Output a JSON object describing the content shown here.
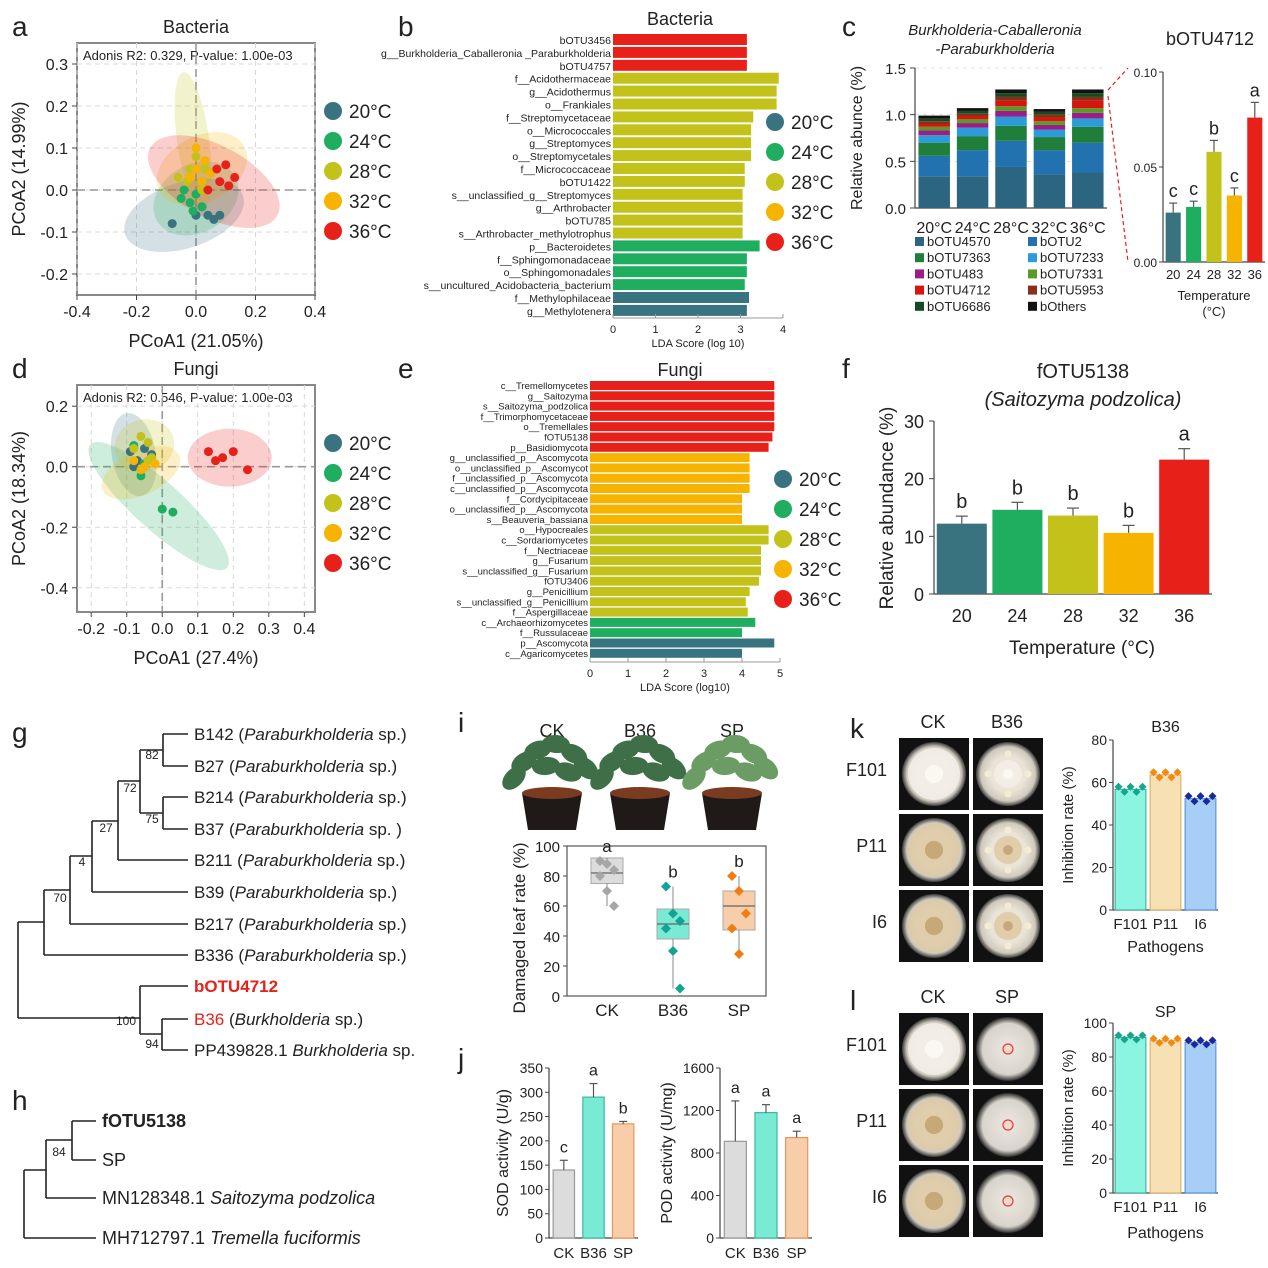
{
  "colors": {
    "t20": "#3a7380",
    "t24": "#1fae60",
    "t28": "#c3c21b",
    "t32": "#f6b400",
    "t36": "#e8201a",
    "stack": [
      "#2c6580",
      "#2272b0",
      "#1e7e3a",
      "#2d9bd8",
      "#9a1e88",
      "#5a9a28",
      "#d8140c",
      "#8a2e18",
      "#164a24",
      "#111111"
    ],
    "ck": "#dcdcdc",
    "b36": "#79ead4",
    "sp": "#f8ceaa"
  },
  "panels": {
    "a": "a",
    "b": "b",
    "c": "c",
    "d": "d",
    "e": "e",
    "f": "f",
    "g": "g",
    "h": "h",
    "i": "i",
    "j": "j",
    "k": "k",
    "l": "l"
  },
  "legend_temps": [
    "20°C",
    "24°C",
    "28°C",
    "32°C",
    "36°C"
  ],
  "chart_data": [
    {
      "id": "a",
      "type": "scatter",
      "title": "Bacteria",
      "annotation": "Adonis R2: 0.329, P-value: 1.00e-03",
      "xlabel": "PCoA1 (21.05%)",
      "ylabel": "PCoA2 (14.99%)",
      "xlim": [
        -0.4,
        0.4
      ],
      "ylim": [
        -0.25,
        0.35
      ],
      "xticks": [
        "-0.4",
        "-0.2",
        "0.0",
        "0.2",
        "0.4"
      ],
      "yticks": [
        "0.3",
        "0.2",
        "0.1",
        "0.0",
        "-0.1",
        "-0.2"
      ],
      "series": [
        {
          "name": "20°C",
          "points": [
            [
              -0.08,
              -0.08
            ],
            [
              0.0,
              -0.06
            ],
            [
              0.04,
              -0.06
            ],
            [
              0.08,
              -0.06
            ],
            [
              0.02,
              -0.04
            ],
            [
              0.06,
              -0.07
            ]
          ]
        },
        {
          "name": "24°C",
          "points": [
            [
              -0.05,
              -0.02
            ],
            [
              -0.02,
              -0.03
            ],
            [
              0.0,
              -0.01
            ],
            [
              -0.04,
              0.0
            ],
            [
              0.02,
              -0.04
            ],
            [
              -0.01,
              -0.05
            ]
          ]
        },
        {
          "name": "28°C",
          "points": [
            [
              -0.02,
              0.05
            ],
            [
              -0.06,
              0.03
            ],
            [
              0.0,
              0.08
            ],
            [
              0.03,
              0.05
            ],
            [
              -0.03,
              0.02
            ],
            [
              0.02,
              0.0
            ]
          ]
        },
        {
          "name": "32°C",
          "points": [
            [
              0.0,
              0.1
            ],
            [
              0.03,
              0.07
            ],
            [
              -0.02,
              0.03
            ],
            [
              0.0,
              0.05
            ],
            [
              0.05,
              0.04
            ],
            [
              0.02,
              0.02
            ]
          ]
        },
        {
          "name": "36°C",
          "points": [
            [
              0.1,
              0.06
            ],
            [
              0.08,
              0.02
            ],
            [
              0.13,
              0.03
            ],
            [
              0.04,
              0.0
            ],
            [
              0.07,
              0.05
            ],
            [
              0.11,
              0.01
            ]
          ]
        }
      ]
    },
    {
      "id": "b",
      "type": "bar",
      "orientation": "horizontal",
      "title": "Bacteria",
      "xlabel": "LDA Score (log 10)",
      "xlim": [
        0,
        4
      ],
      "xticks": [
        "0",
        "1",
        "2",
        "3",
        "4"
      ],
      "categories": [
        "bOTU3456",
        "g__Burkholderia_Caballeronia _Paraburkholderia",
        "bOTU4757",
        "f__Acidothermaceae",
        "g__Acidothermus",
        "o__Frankiales",
        "f__Streptomycetaceae",
        "o__Micrococcales",
        "g__Streptomyces",
        "o__Streptomycetales",
        "f__Micrococcaceae",
        "bOTU1422",
        "s__unclassified_g__Streptomyces",
        "g__Arthrobacter",
        "bOTU785",
        "s__Arthrobacter_methylotrophus",
        "p__Bacteroidetes",
        "f__Sphingomonadaceae",
        "o__Sphingomonadales",
        "s__uncultured_Acidobacteria_bacterium",
        "f__Methylophilaceae",
        "g__Methylotenera"
      ],
      "values": [
        3.15,
        3.15,
        3.15,
        3.9,
        3.85,
        3.85,
        3.3,
        3.25,
        3.25,
        3.25,
        3.1,
        3.1,
        3.05,
        3.05,
        3.05,
        3.05,
        3.45,
        3.15,
        3.15,
        3.1,
        3.2,
        3.15
      ],
      "groups": [
        "36°C",
        "36°C",
        "36°C",
        "28°C",
        "28°C",
        "28°C",
        "28°C",
        "28°C",
        "28°C",
        "28°C",
        "28°C",
        "28°C",
        "28°C",
        "28°C",
        "28°C",
        "28°C",
        "24°C",
        "24°C",
        "24°C",
        "24°C",
        "20°C",
        "20°C"
      ],
      "highlight": [
        "g__Burkholderia_Caballeronia _Paraburkholderia"
      ]
    },
    {
      "id": "c",
      "type": "bar",
      "stacked": true,
      "title": "Burkholderia-Caballeronia -Paraburkholderia",
      "ylabel": "Relative abunce (%)",
      "ylim": [
        0,
        1.5
      ],
      "yticks": [
        "1.5",
        "1.0",
        "0.5",
        "0.0"
      ],
      "categories": [
        "20°C",
        "24°C",
        "28°C",
        "32°C",
        "36°C"
      ],
      "series": [
        {
          "name": "bOTU4570",
          "values": [
            0.34,
            0.34,
            0.44,
            0.36,
            0.38
          ]
        },
        {
          "name": "bOTU2",
          "values": [
            0.22,
            0.28,
            0.28,
            0.26,
            0.32
          ]
        },
        {
          "name": "bOTU7363",
          "values": [
            0.14,
            0.15,
            0.16,
            0.14,
            0.17
          ]
        },
        {
          "name": "bOTU7233",
          "values": [
            0.08,
            0.09,
            0.1,
            0.08,
            0.09
          ]
        },
        {
          "name": "bOTU483",
          "values": [
            0.05,
            0.05,
            0.06,
            0.05,
            0.06
          ]
        },
        {
          "name": "bOTU7331",
          "values": [
            0.04,
            0.04,
            0.05,
            0.04,
            0.05
          ]
        },
        {
          "name": "bOTU4712",
          "values": [
            0.03,
            0.03,
            0.06,
            0.04,
            0.08
          ]
        },
        {
          "name": "bOTU5953",
          "values": [
            0.03,
            0.03,
            0.04,
            0.03,
            0.04
          ]
        },
        {
          "name": "bOTU6686",
          "values": [
            0.03,
            0.03,
            0.04,
            0.03,
            0.04
          ]
        },
        {
          "name": "bOthers",
          "values": [
            0.03,
            0.03,
            0.04,
            0.03,
            0.04
          ]
        }
      ]
    },
    {
      "id": "c2",
      "type": "bar",
      "title": "bOTU4712",
      "xlabel": "Temperature (°C)",
      "ylim": [
        0,
        0.1
      ],
      "yticks": [
        "0.10",
        "0.05",
        "0.00"
      ],
      "categories": [
        "20",
        "24",
        "28",
        "32",
        "36"
      ],
      "values": [
        0.026,
        0.029,
        0.058,
        0.035,
        0.076
      ],
      "errors": [
        0.005,
        0.003,
        0.006,
        0.004,
        0.008
      ],
      "letters": [
        "c",
        "c",
        "b",
        "c",
        "a"
      ]
    },
    {
      "id": "d",
      "type": "scatter",
      "title": "Fungi",
      "annotation": "Adonis R2: 0.546, P-value: 1.00e-03",
      "xlabel": "PCoA1 (27.4%)",
      "ylabel": "PCoA2 (18.34%)",
      "xlim": [
        -0.24,
        0.43
      ],
      "ylim": [
        -0.48,
        0.27
      ],
      "xticks": [
        "-0.2",
        "-0.1",
        "0.0",
        "0.1",
        "0.2",
        "0.3",
        "0.4"
      ],
      "yticks": [
        "0.2",
        "0.0",
        "-0.2",
        "-0.4"
      ],
      "series": [
        {
          "name": "20°C",
          "points": [
            [
              -0.09,
              0.05
            ],
            [
              -0.05,
              0.06
            ],
            [
              -0.07,
              0.02
            ],
            [
              -0.03,
              0.04
            ],
            [
              -0.08,
              0.0
            ]
          ]
        },
        {
          "name": "24°C",
          "points": [
            [
              -0.08,
              0.07
            ],
            [
              -0.05,
              0.01
            ],
            [
              -0.06,
              -0.03
            ],
            [
              0.0,
              -0.14
            ],
            [
              0.03,
              -0.15
            ]
          ]
        },
        {
          "name": "28°C",
          "points": [
            [
              -0.06,
              0.1
            ],
            [
              -0.04,
              0.08
            ],
            [
              -0.08,
              0.06
            ],
            [
              -0.03,
              0.03
            ],
            [
              -0.04,
              0.02
            ]
          ]
        },
        {
          "name": "32°C",
          "points": [
            [
              -0.08,
              0.02
            ],
            [
              -0.06,
              -0.01
            ],
            [
              -0.02,
              0.01
            ],
            [
              -0.05,
              0.0
            ]
          ]
        },
        {
          "name": "36°C",
          "points": [
            [
              0.13,
              0.05
            ],
            [
              0.17,
              0.03
            ],
            [
              0.2,
              0.05
            ],
            [
              0.15,
              0.02
            ],
            [
              0.24,
              -0.01
            ]
          ]
        }
      ]
    },
    {
      "id": "e",
      "type": "bar",
      "orientation": "horizontal",
      "title": "Fungi",
      "xlabel": "LDA Score (log10)",
      "xlim": [
        0,
        5
      ],
      "xticks": [
        "0",
        "1",
        "2",
        "3",
        "4",
        "5"
      ],
      "categories": [
        "c__Tremellomycetes",
        "g__Saitozyma",
        "s__Saitozyma_podzolica",
        "f__Trimorphomycetaceae",
        "o__Tremellales",
        "fOTU5138",
        "p__Basidiomycota",
        "g__unclassified_p__Ascomycota",
        "o__unclassified_p__Ascomycot",
        "f__unclassified_p__Ascomycota",
        "c__unclassified_p__Ascomycota",
        "f__Cordycipitaceae",
        "o__unclassified_p__Ascomycota",
        "s__Beauveria_bassiana",
        "o__Hypocreales",
        "c__Sordariomycetes",
        "f__Nectriaceae",
        "g__Fusarium",
        "s__unclassified_g__Fusarium",
        "fOTU3406",
        "g__Penicillium",
        "s__unclassified_g__Penicillium",
        "f__Aspergillaceae",
        "c__Archaeorhizomycetes",
        "f__Russulaceae",
        "p__Ascomycota",
        "c__Agaricomycetes"
      ],
      "values": [
        4.85,
        4.85,
        4.85,
        4.85,
        4.85,
        4.8,
        4.7,
        4.2,
        4.2,
        4.2,
        4.2,
        4.0,
        4.0,
        4.0,
        4.7,
        4.7,
        4.5,
        4.5,
        4.5,
        4.45,
        4.2,
        4.1,
        4.15,
        4.35,
        4.0,
        4.85,
        4.0
      ],
      "groups": [
        "36°C",
        "36°C",
        "36°C",
        "36°C",
        "36°C",
        "36°C",
        "36°C",
        "32°C",
        "32°C",
        "32°C",
        "32°C",
        "32°C",
        "32°C",
        "32°C",
        "28°C",
        "28°C",
        "28°C",
        "28°C",
        "28°C",
        "28°C",
        "28°C",
        "28°C",
        "28°C",
        "24°C",
        "24°C",
        "20°C",
        "20°C"
      ],
      "highlight": [
        "fOTU5138"
      ]
    },
    {
      "id": "f",
      "type": "bar",
      "title": "fOTU5138 (Saitozyma podzolica)",
      "xlabel": "Temperature (°C)",
      "ylabel": "Relative abundance (%)",
      "ylim": [
        0,
        30
      ],
      "yticks": [
        "30",
        "20",
        "10",
        "0"
      ],
      "categories": [
        "20",
        "24",
        "28",
        "32",
        "36"
      ],
      "values": [
        12.2,
        14.6,
        13.6,
        10.6,
        23.3
      ],
      "errors": [
        1.3,
        1.3,
        1.3,
        1.3,
        1.9
      ],
      "letters": [
        "b",
        "b",
        "b",
        "b",
        "a"
      ]
    },
    {
      "id": "i",
      "type": "box",
      "ylabel": "Damaged leaf rate (%)",
      "ylim": [
        0,
        100
      ],
      "yticks": [
        "100",
        "80",
        "60",
        "40",
        "20",
        "0"
      ],
      "categories": [
        "CK",
        "B36",
        "SP"
      ],
      "points": [
        [
          90,
          88,
          84,
          80,
          70,
          60
        ],
        [
          73,
          55,
          50,
          45,
          30,
          5
        ],
        [
          80,
          70,
          55,
          45,
          28
        ]
      ],
      "box": [
        [
          75,
          82,
          92
        ],
        [
          38,
          48,
          58
        ],
        [
          44,
          60,
          70
        ]
      ],
      "letters": [
        "a",
        "b",
        "b"
      ]
    },
    {
      "id": "j1",
      "type": "bar",
      "ylabel": "SOD activity (U/g)",
      "ylim": [
        0,
        350
      ],
      "yticks": [
        "350",
        "300",
        "250",
        "200",
        "150",
        "100",
        "50",
        "0"
      ],
      "categories": [
        "CK",
        "B36",
        "SP"
      ],
      "values": [
        140,
        290,
        235
      ],
      "errors": [
        20,
        28,
        5
      ],
      "letters": [
        "c",
        "a",
        "b"
      ]
    },
    {
      "id": "j2",
      "type": "bar",
      "ylabel": "POD activity (U/mg)",
      "ylim": [
        0,
        1600
      ],
      "yticks": [
        "1600",
        "1200",
        "800",
        "400",
        "0"
      ],
      "categories": [
        "CK",
        "B36",
        "SP"
      ],
      "values": [
        910,
        1180,
        945
      ],
      "errors": [
        380,
        75,
        60
      ],
      "letters": [
        "a",
        "a",
        "a"
      ]
    },
    {
      "id": "k",
      "type": "bar",
      "title": "B36",
      "xlabel": "Pathogens",
      "ylabel": "Inhibition rate (%)",
      "ylim": [
        0,
        80
      ],
      "yticks": [
        "80",
        "60",
        "40",
        "20",
        "0"
      ],
      "categories": [
        "F101",
        "P11",
        "I6"
      ],
      "values": [
        56.8,
        63.6,
        52.4
      ]
    },
    {
      "id": "l",
      "type": "bar",
      "title": "SP",
      "xlabel": "Pathogens",
      "ylabel": "Inhibition rate (%)",
      "ylim": [
        0,
        100
      ],
      "yticks": [
        "100",
        "80",
        "60",
        "40",
        "20",
        "0"
      ],
      "categories": [
        "F101",
        "P11",
        "I6"
      ],
      "values": [
        91.5,
        89.6,
        88.6
      ]
    }
  ],
  "tree_g": {
    "taxa": [
      {
        "id": "B142",
        "species": "Paraburkholderia sp."
      },
      {
        "id": "B27",
        "species": "Paraburkholderia sp."
      },
      {
        "id": "B214",
        "species": "Paraburkholderia sp."
      },
      {
        "id": "B37",
        "species": "Paraburkholderia sp. )"
      },
      {
        "id": "B211",
        "species": "Paraburkholderia sp."
      },
      {
        "id": "B39",
        "species": "Paraburkholderia sp."
      },
      {
        "id": "B217",
        "species": "Paraburkholderia sp."
      },
      {
        "id": "B336",
        "species": "Paraburkholderia sp."
      },
      {
        "id": "bOTU4712",
        "species": ""
      },
      {
        "id": "B36",
        "species": "Burkholderia sp."
      },
      {
        "id": "PP439828.1",
        "species": "Burkholderia sp."
      }
    ],
    "bootstraps": [
      "82",
      "72",
      "75",
      "27",
      "4",
      "70",
      "100",
      "94"
    ]
  },
  "tree_h": {
    "taxa": [
      "fOTU5138",
      "SP",
      "MN128348.1 Saitozyma podzolica",
      "MH712797.1 Tremella fuciformis"
    ],
    "bootstraps": [
      "84"
    ]
  },
  "plates_k": {
    "columns": [
      "CK",
      "B36"
    ],
    "rows": [
      "F101",
      "P11",
      "I6"
    ]
  },
  "plates_l": {
    "columns": [
      "CK",
      "SP"
    ],
    "rows": [
      "F101",
      "P11",
      "I6"
    ]
  },
  "plants_i": [
    "CK",
    "B36",
    "SP"
  ]
}
